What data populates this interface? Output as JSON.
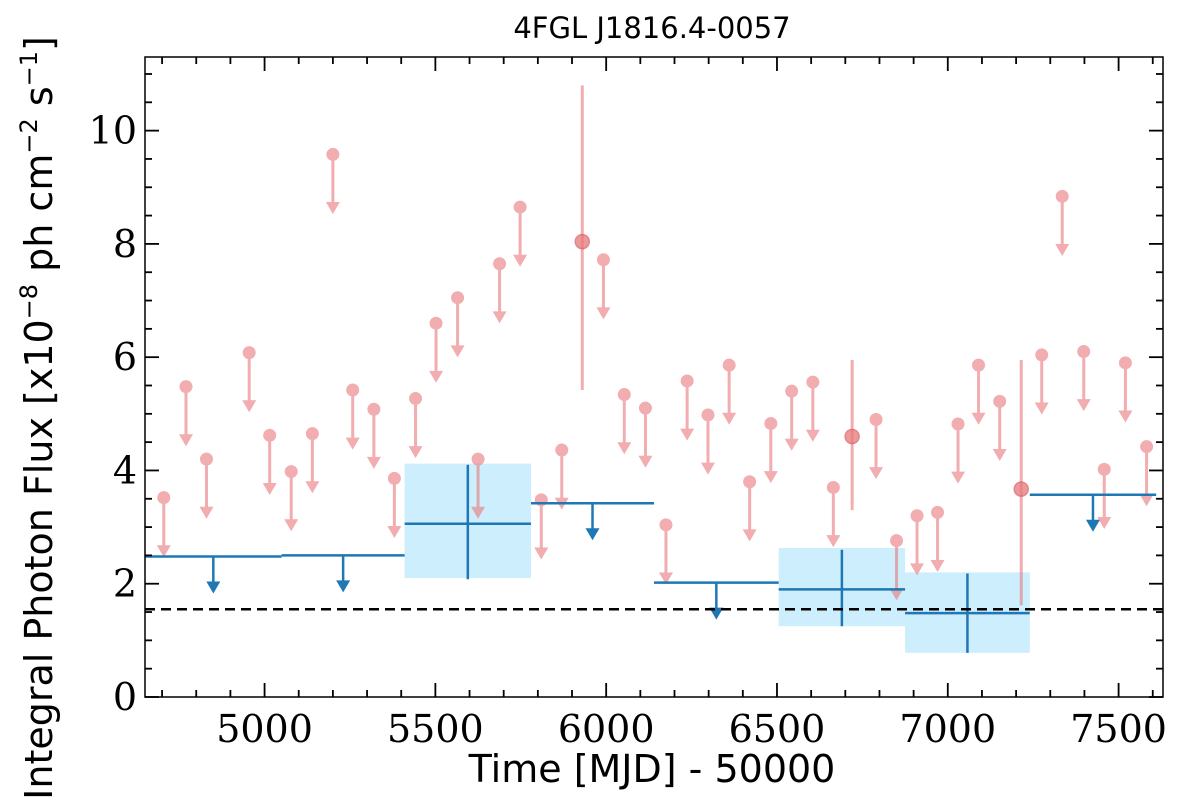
{
  "chart_data": {
    "type": "scatter",
    "title": "4FGL J1816.4-0057",
    "xlabel": "Time [MJD] - 50000",
    "ylabel_main": "Integral Photon Flux [x10",
    "ylabel_exp1": "−8",
    "ylabel_mid": " ph cm",
    "ylabel_exp2": "−2",
    "ylabel_mid2": " s",
    "ylabel_exp3": "−1",
    "ylabel_end": "]",
    "xlim": [
      4650,
      7630
    ],
    "ylim": [
      0,
      11.3
    ],
    "x_ticks": [
      "5000",
      "5500",
      "6000",
      "6500",
      "7000",
      "7500"
    ],
    "y_ticks": [
      "0",
      "2",
      "4",
      "6",
      "8",
      "10"
    ],
    "grid": false,
    "baseline_flux": 1.55,
    "colors": {
      "monthly": "#e8787b",
      "yearly": "#1f77b4",
      "yearly_band": "#cdeefc",
      "baseline": "#000000"
    },
    "monthly_upper_limits": [
      {
        "x": 4705,
        "y": 3.52
      },
      {
        "x": 4770,
        "y": 5.48
      },
      {
        "x": 4830,
        "y": 4.2
      },
      {
        "x": 4955,
        "y": 6.08
      },
      {
        "x": 5015,
        "y": 4.62
      },
      {
        "x": 5078,
        "y": 3.98
      },
      {
        "x": 5140,
        "y": 4.65
      },
      {
        "x": 5200,
        "y": 9.58
      },
      {
        "x": 5258,
        "y": 5.42
      },
      {
        "x": 5320,
        "y": 5.08
      },
      {
        "x": 5380,
        "y": 3.86
      },
      {
        "x": 5442,
        "y": 5.27
      },
      {
        "x": 5502,
        "y": 6.6
      },
      {
        "x": 5565,
        "y": 7.05
      },
      {
        "x": 5625,
        "y": 4.2
      },
      {
        "x": 5688,
        "y": 7.65
      },
      {
        "x": 5748,
        "y": 8.65
      },
      {
        "x": 5810,
        "y": 3.48
      },
      {
        "x": 5870,
        "y": 4.36
      },
      {
        "x": 5992,
        "y": 7.72
      },
      {
        "x": 6053,
        "y": 5.34
      },
      {
        "x": 6115,
        "y": 5.1
      },
      {
        "x": 6175,
        "y": 3.04
      },
      {
        "x": 6237,
        "y": 5.58
      },
      {
        "x": 6298,
        "y": 4.98
      },
      {
        "x": 6360,
        "y": 5.86
      },
      {
        "x": 6420,
        "y": 3.8
      },
      {
        "x": 6482,
        "y": 4.83
      },
      {
        "x": 6543,
        "y": 5.4
      },
      {
        "x": 6605,
        "y": 5.56
      },
      {
        "x": 6665,
        "y": 3.7
      },
      {
        "x": 6790,
        "y": 4.9
      },
      {
        "x": 6850,
        "y": 2.76
      },
      {
        "x": 6910,
        "y": 3.2
      },
      {
        "x": 6970,
        "y": 3.26
      },
      {
        "x": 7030,
        "y": 4.82
      },
      {
        "x": 7090,
        "y": 5.86
      },
      {
        "x": 7152,
        "y": 5.22
      },
      {
        "x": 7275,
        "y": 6.04
      },
      {
        "x": 7335,
        "y": 8.84
      },
      {
        "x": 7398,
        "y": 6.1
      },
      {
        "x": 7458,
        "y": 4.02
      },
      {
        "x": 7520,
        "y": 5.9
      },
      {
        "x": 7582,
        "y": 4.42
      }
    ],
    "monthly_detections": [
      {
        "x": 5930,
        "y": 8.04,
        "y_low": 5.42,
        "y_high": 10.8
      },
      {
        "x": 6720,
        "y": 4.6,
        "y_low": 3.3,
        "y_high": 5.95
      },
      {
        "x": 7215,
        "y": 3.67,
        "y_low": 1.62,
        "y_high": 5.95
      }
    ],
    "yearly_upper_limits": [
      {
        "x_start": 4650,
        "x_end": 5050,
        "y": 2.48
      },
      {
        "x_start": 5050,
        "x_end": 5410,
        "y": 2.5
      },
      {
        "x_start": 5780,
        "x_end": 6140,
        "y": 3.42
      },
      {
        "x_start": 6140,
        "x_end": 6505,
        "y": 2.02
      },
      {
        "x_start": 7240,
        "x_end": 7610,
        "y": 3.57
      }
    ],
    "yearly_detections": [
      {
        "x_start": 5410,
        "x_end": 5780,
        "y": 3.06,
        "y_low": 2.08,
        "y_high": 4.1,
        "band_low": 2.1,
        "band_high": 4.12
      },
      {
        "x_start": 6505,
        "x_end": 6875,
        "y": 1.9,
        "y_low": 1.25,
        "y_high": 2.6,
        "band_low": 1.25,
        "band_high": 2.63
      },
      {
        "x_start": 6875,
        "x_end": 7240,
        "y": 1.48,
        "y_low": 0.78,
        "y_high": 2.18,
        "band_low": 0.78,
        "band_high": 2.2
      }
    ]
  }
}
